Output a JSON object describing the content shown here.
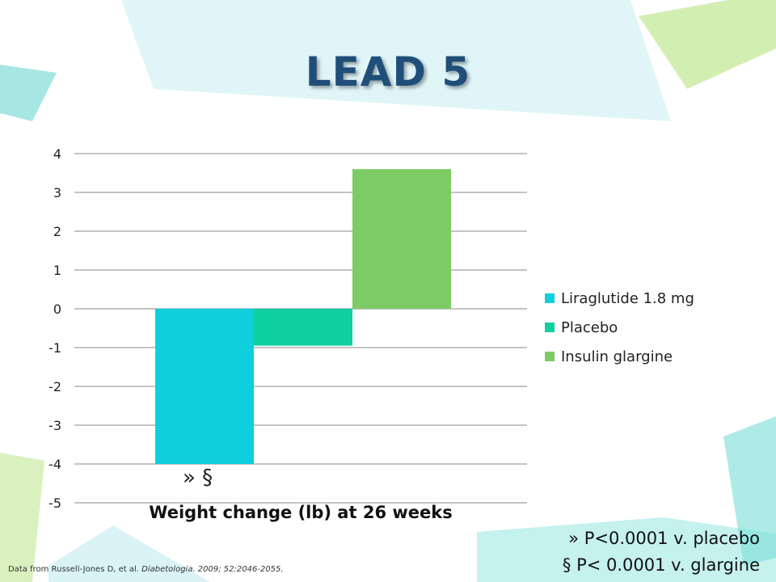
{
  "slide": {
    "title": "LEAD 5",
    "marker": "» §",
    "footnotes": [
      "» P<0.0001 v. placebo",
      "§ P< 0.0001 v. glargine"
    ],
    "source": {
      "prefix": "Data from Russell-Jones D, et al. ",
      "journal": "Diabetologia. 2009; 52:2046-2055."
    }
  },
  "chart_data": {
    "type": "bar",
    "title": "",
    "xlabel": "Weight change (lb) at 26 weeks",
    "ylabel": "",
    "ylim": [
      -5,
      4
    ],
    "yticks": [
      4,
      3,
      2,
      1,
      0,
      -1,
      -2,
      -3,
      -4,
      -5
    ],
    "grid": true,
    "legend_position": "right",
    "categories": [
      "Weight change (lb) at 26 weeks"
    ],
    "series": [
      {
        "name": "Liraglutide 1.8 mg",
        "values": [
          -4.0
        ],
        "color": "#0fcfdc"
      },
      {
        "name": "Placebo",
        "values": [
          -0.95
        ],
        "color": "#10d0a0"
      },
      {
        "name": "Insulin glargine",
        "values": [
          3.6
        ],
        "color": "#7dcb64"
      }
    ]
  },
  "colors": {
    "title": "#1f4e79",
    "grid": "#8a8a8a"
  }
}
